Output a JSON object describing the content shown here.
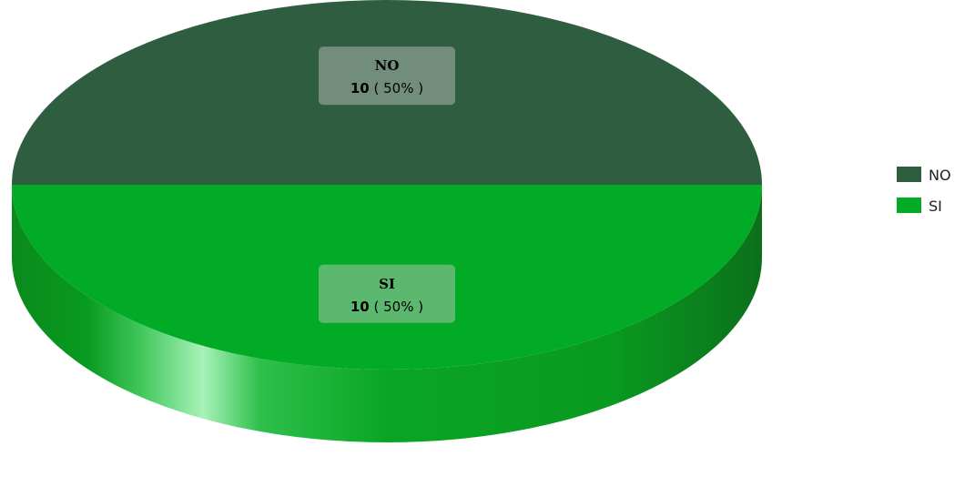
{
  "chart_data": {
    "type": "pie",
    "three_d": true,
    "slices": [
      {
        "label": "NO",
        "value": 10,
        "percent_text": "( 50% )",
        "color": "#2e5d40"
      },
      {
        "label": "SI",
        "value": 10,
        "percent_text": "( 50% )",
        "color": "#02ab25"
      }
    ],
    "legend": {
      "position": "right",
      "items": [
        {
          "label": "NO",
          "color": "#2e5d40"
        },
        {
          "label": "SI",
          "color": "#02ab25"
        }
      ]
    }
  }
}
